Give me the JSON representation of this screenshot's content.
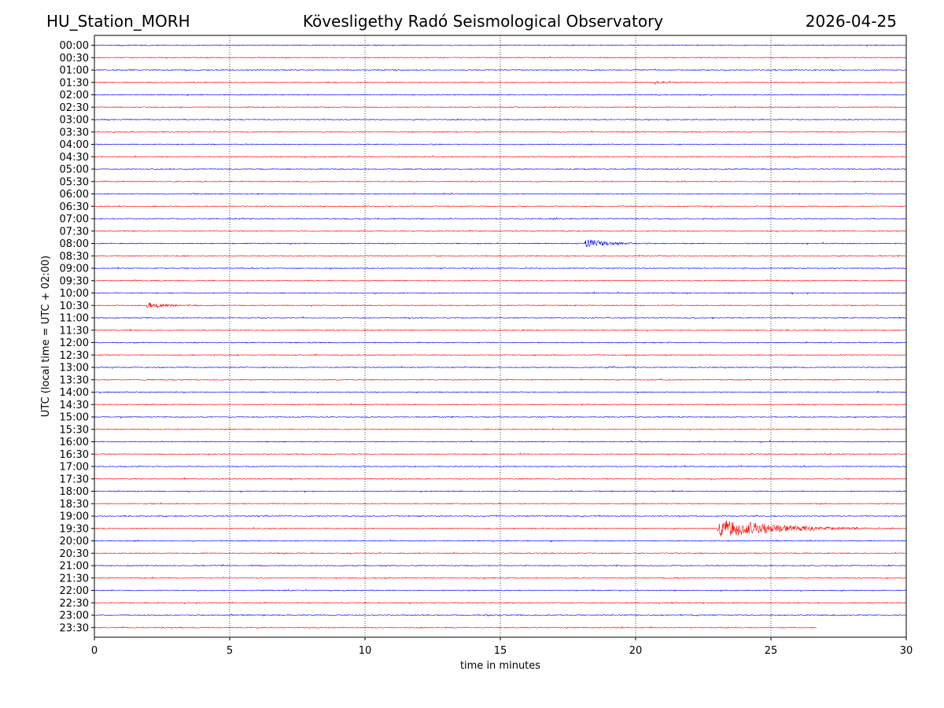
{
  "header": {
    "station": "HU_Station_MORH",
    "observatory": "Kövesligethy Radó Seismological Observatory",
    "date": "2026-04-25"
  },
  "chart_data": {
    "type": "line",
    "xlabel": "time in minutes",
    "ylabel": "UTC (local time = UTC + 02:00)",
    "xlim": [
      0,
      30
    ],
    "xticks": [
      "0",
      "5",
      "10",
      "15",
      "20",
      "25",
      "30"
    ],
    "grid": "vertical dotted lines at x = 5, 10, 15, 20, 25",
    "row_labels": [
      "00:00",
      "00:30",
      "01:00",
      "01:30",
      "02:00",
      "02:30",
      "03:00",
      "03:30",
      "04:00",
      "04:30",
      "05:00",
      "05:30",
      "06:00",
      "06:30",
      "07:00",
      "07:30",
      "08:00",
      "08:30",
      "09:00",
      "09:30",
      "10:00",
      "10:30",
      "11:00",
      "11:30",
      "12:00",
      "12:30",
      "13:00",
      "13:30",
      "14:00",
      "14:30",
      "15:00",
      "15:30",
      "16:00",
      "16:30",
      "17:00",
      "17:30",
      "18:00",
      "18:30",
      "19:00",
      "19:30",
      "20:00",
      "20:30",
      "21:00",
      "21:30",
      "22:00",
      "22:30",
      "23:00",
      "23:30"
    ],
    "series_colors": [
      "#0000ff",
      "#ff0000"
    ],
    "last_trace_end_minute": 26.7,
    "events": [
      {
        "row": "01:30",
        "start_minute": 20.7,
        "end_minute": 21.5,
        "amplitude": 0.25
      },
      {
        "row": "08:00",
        "start_minute": 18.1,
        "end_minute": 20.8,
        "amplitude": 0.55
      },
      {
        "row": "10:30",
        "start_minute": 1.9,
        "end_minute": 4.6,
        "amplitude": 0.35
      },
      {
        "row": "19:30",
        "start_minute": 23.0,
        "end_minute": 29.5,
        "amplitude": 1.2
      }
    ]
  }
}
